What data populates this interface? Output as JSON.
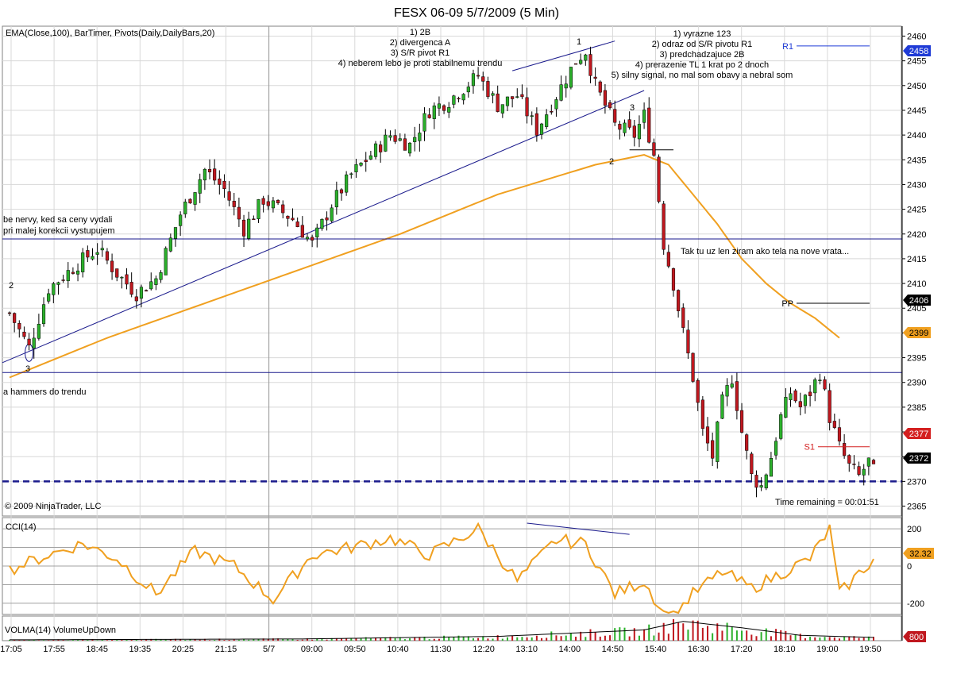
{
  "window": {
    "title": "FESX 06-09  5/7/2009 (5 Min)"
  },
  "main_panel": {
    "indicators_label": "EMA(Close,100), BarTimer, Pivots(Daily,DailyBars,20)",
    "copyright": "© 2009 NinjaTrader, LLC",
    "time_remaining": "Time remaining = 00:01:51",
    "current_price_badge": "2372",
    "pivot_badges": [
      {
        "label": "R1",
        "value": "2458",
        "color": "#1f3bd6"
      },
      {
        "label": "PP",
        "value": "2406",
        "color": "#000000"
      },
      {
        "label": "S1",
        "value": "2377",
        "color": "#d42020"
      }
    ],
    "ema_badge": "2399",
    "annotations_left": [
      "be nervy, ked sa ceny vydali",
      "pri malej korekcii vystupujem",
      "a hammers do trendu"
    ],
    "annotation_top_middle": [
      "1) 2B",
      "2) divergenca A",
      "3) S/R pivot R1",
      "4) neberem lebo je proti stabilnemu trendu"
    ],
    "annotation_top_right": [
      "1) vyrazne 123",
      "2) odraz od S/R pivotu R1",
      "3) predchadzajuce 2B",
      "4) prerazenie TL 1 krat po 2 dnoch",
      "5) silny signal, no mal som obavy a nebral som"
    ],
    "annotation_mid_right": "Tak tu uz len ziram ako tela na nove vrata...",
    "point_labels": [
      "1",
      "2",
      "3",
      "2",
      "3"
    ]
  },
  "cci_panel": {
    "label": "CCI(14)",
    "badge": "32.32"
  },
  "volume_panel": {
    "label": "VOLMA(14)  VolumeUpDown",
    "badge": "800"
  },
  "colors": {
    "up": "#2bb02b",
    "down": "#c0181f",
    "ema": "#f0a020",
    "trendline": "#1a1a8c",
    "grid": "#d8d8d8"
  },
  "chart_data": [
    {
      "type": "candlestick",
      "title": "FESX 06-09  5/7/2009 (5 Min)",
      "ylim": [
        2363,
        2462
      ],
      "y_ticks": [
        2365,
        2370,
        2375,
        2380,
        2385,
        2390,
        2395,
        2400,
        2405,
        2410,
        2415,
        2420,
        2425,
        2430,
        2435,
        2440,
        2445,
        2450,
        2455,
        2460
      ],
      "x_tick_labels": [
        "17:05",
        "17:55",
        "18:45",
        "19:35",
        "20:25",
        "21:15",
        "5/7",
        "09:00",
        "09:50",
        "10:40",
        "11:30",
        "12:20",
        "13:10",
        "14:00",
        "14:50",
        "15:40",
        "16:30",
        "17:20",
        "18:10",
        "19:00",
        "19:50"
      ],
      "bar_count": 178,
      "close_path": [
        [
          0,
          2404
        ],
        [
          4,
          2397
        ],
        [
          8,
          2409
        ],
        [
          14,
          2414
        ],
        [
          18,
          2417
        ],
        [
          22,
          2412
        ],
        [
          26,
          2408
        ],
        [
          30,
          2411
        ],
        [
          35,
          2424
        ],
        [
          40,
          2433
        ],
        [
          44,
          2429
        ],
        [
          48,
          2421
        ],
        [
          52,
          2427
        ],
        [
          58,
          2423
        ],
        [
          62,
          2418
        ],
        [
          66,
          2426
        ],
        [
          70,
          2432
        ],
        [
          74,
          2436
        ],
        [
          78,
          2440
        ],
        [
          82,
          2438
        ],
        [
          86,
          2445
        ],
        [
          90,
          2447
        ],
        [
          96,
          2452
        ],
        [
          100,
          2446
        ],
        [
          104,
          2448
        ],
        [
          108,
          2441
        ],
        [
          112,
          2448
        ],
        [
          116,
          2455
        ],
        [
          118,
          2457
        ],
        [
          120,
          2450
        ],
        [
          124,
          2442
        ],
        [
          128,
          2440
        ],
        [
          130,
          2444
        ],
        [
          132,
          2436
        ],
        [
          134,
          2418
        ],
        [
          136,
          2410
        ],
        [
          138,
          2400
        ],
        [
          140,
          2391
        ],
        [
          142,
          2380
        ],
        [
          144,
          2375
        ],
        [
          146,
          2386
        ],
        [
          148,
          2391
        ],
        [
          150,
          2380
        ],
        [
          152,
          2371
        ],
        [
          154,
          2369
        ],
        [
          156,
          2375
        ],
        [
          158,
          2383
        ],
        [
          160,
          2388
        ],
        [
          162,
          2385
        ],
        [
          164,
          2388
        ],
        [
          166,
          2392
        ],
        [
          168,
          2383
        ],
        [
          170,
          2377
        ],
        [
          172,
          2373
        ],
        [
          174,
          2371
        ],
        [
          176,
          2374
        ],
        [
          177,
          2372
        ]
      ],
      "ema": {
        "name": "EMA(Close,100)",
        "points": [
          [
            0,
            2391
          ],
          [
            20,
            2399
          ],
          [
            40,
            2406
          ],
          [
            60,
            2413
          ],
          [
            80,
            2420
          ],
          [
            100,
            2428
          ],
          [
            120,
            2434
          ],
          [
            130,
            2436
          ],
          [
            135,
            2434
          ],
          [
            140,
            2428
          ],
          [
            145,
            2422
          ],
          [
            150,
            2415
          ],
          [
            155,
            2410
          ],
          [
            160,
            2406
          ],
          [
            165,
            2403
          ],
          [
            170,
            2399
          ]
        ]
      },
      "pivots": [
        {
          "name": "R1",
          "value": 2458
        },
        {
          "name": "PP",
          "value": 2406
        },
        {
          "name": "S1",
          "value": 2377
        }
      ],
      "horizontal_lines": [
        2419,
        2392,
        2370
      ]
    },
    {
      "type": "line",
      "name": "CCI(14)",
      "ylim": [
        -260,
        260
      ],
      "y_ticks": [
        200,
        0,
        -200
      ],
      "points": [
        [
          0,
          -20
        ],
        [
          8,
          60
        ],
        [
          15,
          120
        ],
        [
          22,
          40
        ],
        [
          30,
          -150
        ],
        [
          38,
          80
        ],
        [
          46,
          0
        ],
        [
          54,
          -180
        ],
        [
          62,
          60
        ],
        [
          70,
          100
        ],
        [
          78,
          150
        ],
        [
          86,
          60
        ],
        [
          96,
          200
        ],
        [
          104,
          -80
        ],
        [
          112,
          140
        ],
        [
          118,
          120
        ],
        [
          124,
          -150
        ],
        [
          130,
          -80
        ],
        [
          135,
          -300
        ],
        [
          140,
          -150
        ],
        [
          146,
          -30
        ],
        [
          152,
          -120
        ],
        [
          158,
          -40
        ],
        [
          164,
          40
        ],
        [
          168,
          200
        ],
        [
          170,
          -150
        ],
        [
          174,
          -40
        ],
        [
          176,
          10
        ],
        [
          177,
          32.32
        ]
      ]
    },
    {
      "type": "bar",
      "name": "VOLMA(14)  VolumeUpDown",
      "y_ticks": [
        800
      ],
      "volume_profile": [
        [
          0,
          40
        ],
        [
          60,
          80
        ],
        [
          100,
          200
        ],
        [
          130,
          500
        ],
        [
          138,
          900
        ],
        [
          150,
          600
        ],
        [
          162,
          250
        ],
        [
          177,
          150
        ]
      ]
    }
  ]
}
